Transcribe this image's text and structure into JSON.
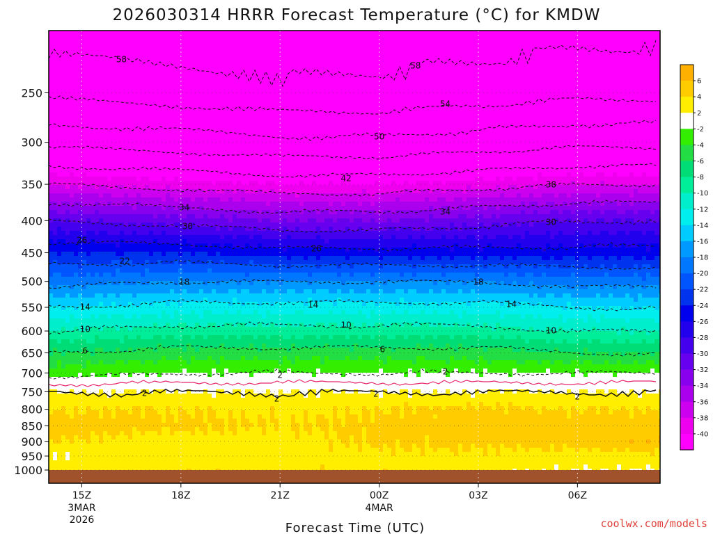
{
  "chart_data": {
    "type": "heatmap",
    "title": "2026030314 HRRR Forecast Temperature (°C) for KMDW",
    "xlabel": "Forecast Time (UTC)",
    "ylabel": "",
    "y_scale": "log-pressure",
    "y_range_hpa": [
      1000,
      200
    ],
    "x_range_hours_utc": [
      14,
      8.5
    ],
    "y_ticks": [
      1000,
      950,
      900,
      850,
      800,
      750,
      700,
      650,
      600,
      550,
      500,
      450,
      400,
      350,
      300,
      250
    ],
    "x_ticks": [
      {
        "label": "15Z",
        "sub": [
          "3MAR",
          "2026"
        ],
        "hour": 15
      },
      {
        "label": "18Z",
        "sub": [],
        "hour": 18
      },
      {
        "label": "21Z",
        "sub": [],
        "hour": 21
      },
      {
        "label": "00Z",
        "sub": [
          "4MAR"
        ],
        "hour": 24
      },
      {
        "label": "03Z",
        "sub": [],
        "hour": 27
      },
      {
        "label": "06Z",
        "sub": [],
        "hour": 30
      }
    ],
    "grid": true,
    "colorbar": {
      "position": "right",
      "labels": [
        "6",
        "4",
        "2",
        "-2",
        "-4",
        "-6",
        "-8",
        "-10",
        "-12",
        "-14",
        "-16",
        "-18",
        "-20",
        "-22",
        "-24",
        "-26",
        "-28",
        "-30",
        "-32",
        "-34",
        "-36",
        "-38",
        "-40"
      ],
      "bins": [
        {
          "lo": 6,
          "hi": 8,
          "color": "#ffb000"
        },
        {
          "lo": 4,
          "hi": 6,
          "color": "#ffcc00"
        },
        {
          "lo": 2,
          "hi": 4,
          "color": "#ffee00"
        },
        {
          "lo": -2,
          "hi": 2,
          "color": "#ffffff"
        },
        {
          "lo": -4,
          "hi": -2,
          "color": "#33ee00"
        },
        {
          "lo": -6,
          "hi": -4,
          "color": "#22dd44"
        },
        {
          "lo": -8,
          "hi": -6,
          "color": "#00dd77"
        },
        {
          "lo": -10,
          "hi": -8,
          "color": "#00ee99"
        },
        {
          "lo": -12,
          "hi": -10,
          "color": "#00eecc"
        },
        {
          "lo": -14,
          "hi": -12,
          "color": "#00eeee"
        },
        {
          "lo": -16,
          "hi": -14,
          "color": "#00ccff"
        },
        {
          "lo": -18,
          "hi": -16,
          "color": "#0099ff"
        },
        {
          "lo": -20,
          "hi": -18,
          "color": "#0077ff"
        },
        {
          "lo": -22,
          "hi": -20,
          "color": "#0055ff"
        },
        {
          "lo": -24,
          "hi": -22,
          "color": "#0033ee"
        },
        {
          "lo": -26,
          "hi": -24,
          "color": "#0000ee"
        },
        {
          "lo": -28,
          "hi": -26,
          "color": "#2200ee"
        },
        {
          "lo": -30,
          "hi": -28,
          "color": "#4400ee"
        },
        {
          "lo": -32,
          "hi": -30,
          "color": "#6600ee"
        },
        {
          "lo": -34,
          "hi": -32,
          "color": "#8800ee"
        },
        {
          "lo": -36,
          "hi": -34,
          "color": "#aa00ee"
        },
        {
          "lo": -38,
          "hi": -36,
          "color": "#cc00ee"
        },
        {
          "lo": -40,
          "hi": -38,
          "color": "#ee00ee"
        },
        {
          "lo": -60,
          "hi": -40,
          "color": "#ff00ff"
        }
      ]
    },
    "temperature_profiles": {
      "levels_hpa": [
        1000,
        950,
        900,
        850,
        800,
        750,
        700,
        650,
        600,
        550,
        500,
        450,
        400,
        350,
        300,
        250,
        200
      ],
      "columns": [
        {
          "hour": 14,
          "temps": [
            3,
            2,
            4,
            5,
            4,
            2,
            -3,
            -6,
            -10,
            -14,
            -19,
            -24,
            -30,
            -38,
            -47,
            -55,
            -60
          ]
        },
        {
          "hour": 18,
          "temps": [
            3.5,
            3,
            3,
            4.5,
            4,
            2,
            -2,
            -5,
            -9,
            -13,
            -18,
            -24,
            -31,
            -39,
            -48,
            -56,
            -60
          ]
        },
        {
          "hour": 21,
          "temps": [
            3.5,
            3,
            3,
            4,
            3.5,
            2,
            -2,
            -5,
            -9,
            -13,
            -18,
            -25,
            -32,
            -40,
            -49,
            -57,
            -61
          ]
        },
        {
          "hour": 24,
          "temps": [
            3.5,
            3.5,
            4.5,
            4.5,
            4,
            2,
            -2,
            -5,
            -9,
            -13,
            -18,
            -25,
            -32,
            -40,
            -49,
            -57,
            -60
          ]
        },
        {
          "hour": 27,
          "temps": [
            2.5,
            3.5,
            4.5,
            5,
            4.5,
            2,
            -2,
            -5,
            -9,
            -13,
            -18,
            -25,
            -31,
            -39,
            -48,
            -56,
            -60
          ]
        },
        {
          "hour": 30,
          "temps": [
            2,
            3,
            5,
            5,
            4,
            2,
            -2,
            -6,
            -10,
            -14,
            -19,
            -25,
            -30,
            -38,
            -47,
            -55,
            -59
          ]
        },
        {
          "hour": 32.5,
          "temps": [
            2,
            3.5,
            6,
            5,
            4,
            2,
            -2,
            -6,
            -10,
            -14,
            -19,
            -25,
            -30,
            -38,
            -47,
            -55,
            -59
          ]
        }
      ]
    },
    "contour_labels": [
      "58",
      "58",
      "54",
      "50",
      "42",
      "38",
      "34",
      "34",
      "30",
      "30",
      "26",
      "26",
      "22",
      "18",
      "18",
      "14",
      "14",
      "14",
      "10",
      "10",
      "10",
      "6",
      "6",
      "2",
      "2",
      "2",
      "2",
      "2",
      "2"
    ]
  },
  "credit": "coolwx.com/models",
  "colors": {
    "freezing_line": "#e8246c",
    "contour_line": "#111111",
    "ground": "#a0522d",
    "grid": "#d8d8d8"
  }
}
